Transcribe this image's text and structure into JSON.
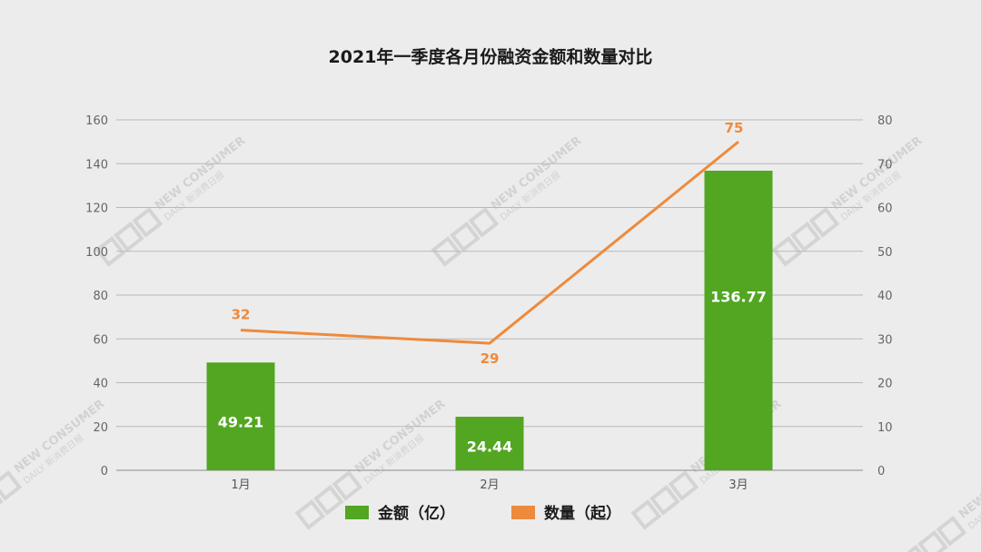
{
  "chart_data": {
    "type": "bar",
    "title": "2021年一季度各月份融资金额和数量对比",
    "categories": [
      "1月",
      "2月",
      "3月"
    ],
    "series": [
      {
        "name": "金额（亿）",
        "type": "bar",
        "axis": "left",
        "color": "#52a622",
        "values": [
          49.21,
          24.44,
          136.77
        ],
        "labels": [
          "49.21",
          "24.44",
          "136.77"
        ]
      },
      {
        "name": "数量（起）",
        "type": "line",
        "axis": "right",
        "color": "#ee8a3c",
        "values": [
          32,
          29,
          75
        ],
        "labels": [
          "32",
          "29",
          "75"
        ]
      }
    ],
    "left_axis": {
      "min": 0,
      "max": 160,
      "ticks": [
        "0",
        "20",
        "40",
        "60",
        "80",
        "100",
        "120",
        "140",
        "160"
      ]
    },
    "right_axis": {
      "min": 0,
      "max": 80,
      "ticks": [
        "0",
        "10",
        "20",
        "30",
        "40",
        "50",
        "60",
        "70",
        "80"
      ]
    },
    "grid": true,
    "legend_position": "bottom"
  },
  "watermark": {
    "brand": "NEW CONSUMER",
    "sub": "DAILY",
    "cn": "新消费日报"
  }
}
